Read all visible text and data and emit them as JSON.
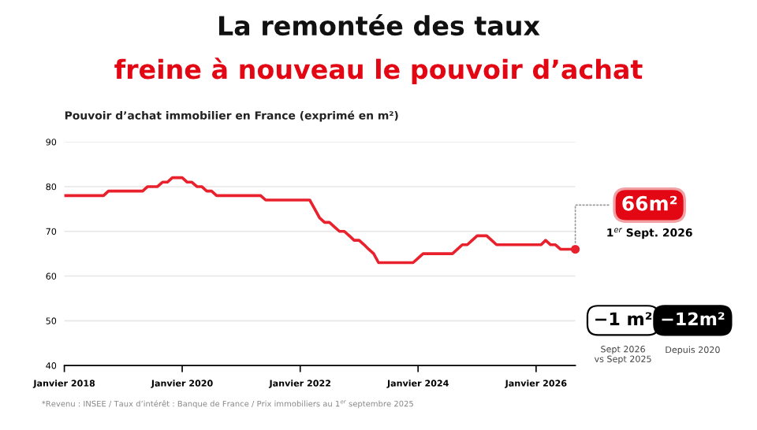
{
  "chart_data": {
    "type": "line",
    "title": "La remontée des taux",
    "subtitle": "freine à nouveau le pouvoir d’achat",
    "ylabel": "Pouvoir d’achat immobilier en France (exprimé en m²)",
    "x": [
      "2018-01",
      "2018-09",
      "2018-10",
      "2019-05",
      "2019-06",
      "2019-08",
      "2019-09",
      "2019-10",
      "2019-11",
      "2020-01",
      "2020-02",
      "2020-03",
      "2020-04",
      "2020-05",
      "2020-06",
      "2020-07",
      "2020-08",
      "2021-05",
      "2021-06",
      "2022-03",
      "2022-04",
      "2022-05",
      "2022-06",
      "2022-07",
      "2022-08",
      "2022-09",
      "2022-10",
      "2022-11",
      "2022-12",
      "2023-01",
      "2023-02",
      "2023-03",
      "2023-04",
      "2023-05",
      "2023-12",
      "2024-01",
      "2024-02",
      "2024-08",
      "2024-09",
      "2024-10",
      "2024-11",
      "2024-12",
      "2025-01",
      "2025-03",
      "2025-04",
      "2025-05",
      "2026-02",
      "2026-03",
      "2026-04",
      "2026-05",
      "2026-06",
      "2026-09"
    ],
    "series": [
      {
        "color": "#e8212d",
        "values": [
          78,
          78,
          79,
          79,
          80,
          80,
          81,
          81,
          82,
          82,
          81,
          81,
          80,
          80,
          79,
          79,
          78,
          78,
          77,
          77,
          75,
          73,
          72,
          72,
          71,
          70,
          70,
          69,
          68,
          68,
          67,
          66,
          65,
          63,
          63,
          64,
          65,
          65,
          66,
          67,
          67,
          68,
          69,
          69,
          68,
          67,
          67,
          68,
          67,
          67,
          66,
          66
        ]
      }
    ],
    "xlim": [
      "2018-01",
      "2026-09"
    ],
    "xticks": [
      {
        "value": "2018-01",
        "label": "Janvier 2018"
      },
      {
        "value": "2020-01",
        "label": "Janvier 2020"
      },
      {
        "value": "2022-01",
        "label": "Janvier 2022"
      },
      {
        "value": "2024-01",
        "label": "Janvier 2024"
      },
      {
        "value": "2026-01",
        "label": "Janvier 2026"
      }
    ],
    "ylim": [
      40,
      90
    ],
    "yticks": [
      40,
      50,
      60,
      70,
      80,
      90
    ],
    "grid": "y",
    "line_style": "solid",
    "annotations": [
      {
        "text": "66m²",
        "x": "2026-09",
        "y": 66
      },
      "1$^{er}$ Sept. 2026",
      "−1 m²",
      "−12m²",
      "Sept 2026\nvs Sept 2025",
      "Depuis 2020",
      "*Revenu : INSEE / Taux d’intérêt : Banque de France / Prix immobiliers au 1$^{er}$ septembre 2025"
    ]
  }
}
